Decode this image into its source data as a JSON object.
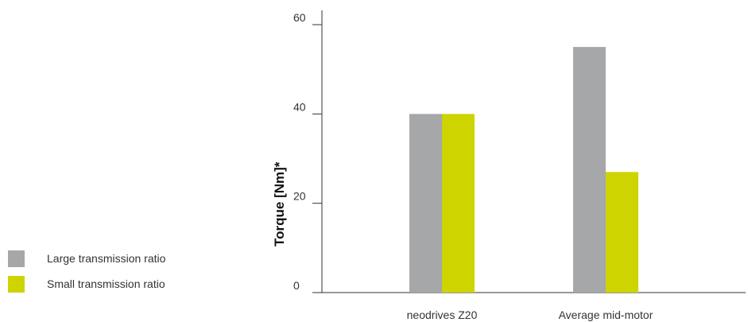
{
  "chart_data": {
    "type": "bar",
    "categories": [
      "neodrives Z20",
      "Average mid-motor"
    ],
    "series": [
      {
        "name": "Large transmission ratio",
        "color": "#a5a7a9",
        "values": [
          40,
          55
        ]
      },
      {
        "name": "Small transmission ratio",
        "color": "#cdd400",
        "values": [
          40,
          27
        ]
      }
    ],
    "ylabel": "Torque [Nm]*",
    "xlabel": "",
    "title": "",
    "ylim": [
      0,
      60
    ],
    "yticks": [
      0,
      20,
      40,
      60
    ],
    "grid": false,
    "legend_position": "left"
  }
}
